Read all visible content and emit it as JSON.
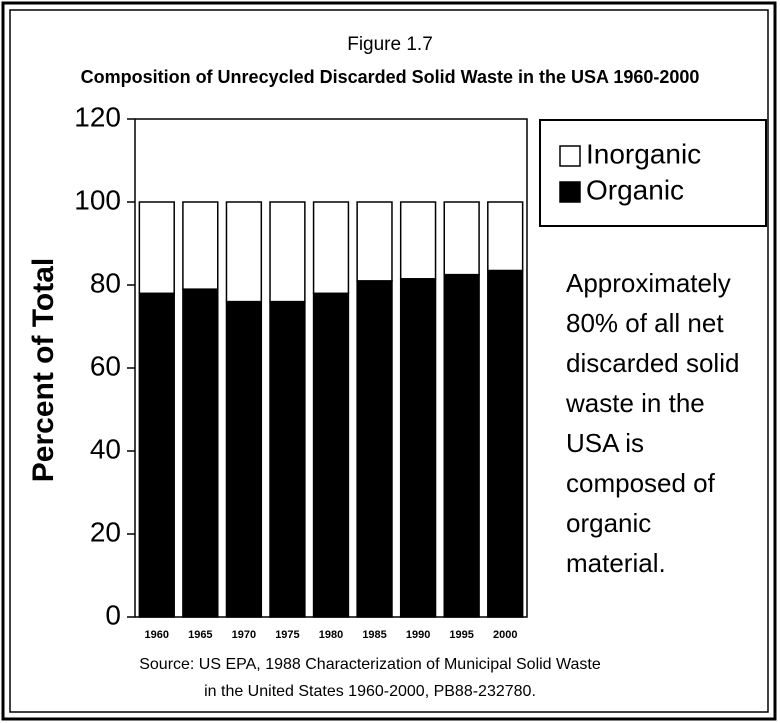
{
  "chart_data": {
    "type": "stacked_bar",
    "title": "Figure 1.7",
    "subtitle": "Composition of Unrecycled Discarded Solid Waste in the USA 1960-2000",
    "ylabel": "Percent of Total",
    "categories": [
      "1960",
      "1965",
      "1970",
      "1975",
      "1980",
      "1985",
      "1990",
      "1995",
      "2000"
    ],
    "series": [
      {
        "name": "Inorganic",
        "color": "#ffffff",
        "values": [
          22,
          21,
          24,
          24,
          22,
          19,
          18.5,
          17.5,
          16.5
        ]
      },
      {
        "name": "Organic",
        "color": "#000000",
        "values": [
          78,
          79,
          76,
          76,
          78,
          81,
          81.5,
          82.5,
          83.5
        ]
      }
    ],
    "ylim": [
      0,
      120
    ],
    "yticks": [
      0,
      20,
      40,
      60,
      80,
      100,
      120
    ],
    "annotation": [
      "Approximately",
      "80% of all net",
      "discarded solid",
      "waste in the",
      "USA is",
      "composed of",
      "organic",
      "material."
    ],
    "source": [
      "Source: US EPA, 1988 Characterization of Municipal Solid Waste",
      "in the United States 1960-2000, PB88-232780."
    ]
  }
}
